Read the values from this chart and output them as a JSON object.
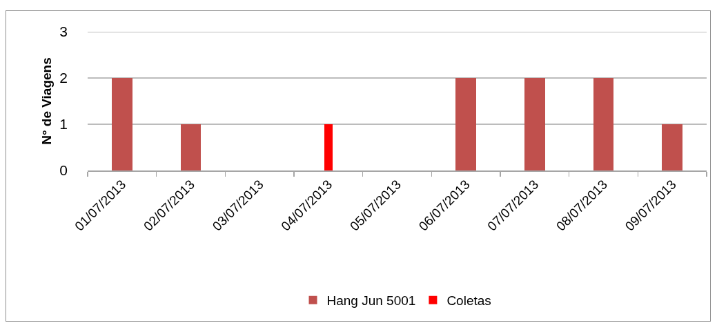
{
  "chart_data": {
    "type": "bar",
    "categories": [
      "01/07/2013",
      "02/07/2013",
      "03/07/2013",
      "04/07/2013",
      "05/07/2013",
      "06/07/2013",
      "07/07/2013",
      "08/07/2013",
      "09/07/2013"
    ],
    "series": [
      {
        "name": "Hang Jun 5001",
        "color": "#c0504d",
        "values": [
          2,
          1,
          0,
          0,
          0,
          2,
          2,
          2,
          1
        ]
      },
      {
        "name": "Coletas",
        "color": "#ff0000",
        "values": [
          null,
          null,
          null,
          1,
          null,
          null,
          null,
          null,
          null
        ]
      }
    ],
    "stacked": true,
    "ylabel": "N° de Viagens",
    "ylim": [
      0,
      3
    ],
    "yticks": [
      0,
      1,
      2,
      3
    ],
    "grid": "y",
    "legend": "bottom"
  }
}
